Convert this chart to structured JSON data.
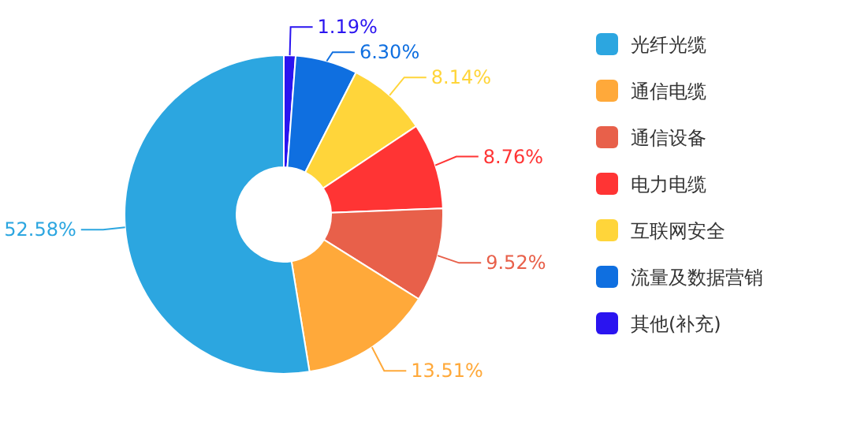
{
  "chart_data": {
    "type": "donut",
    "categories": [
      "光纤光缆",
      "通信电缆",
      "通信设备",
      "电力电缆",
      "互联网安全",
      "流量及数据营销",
      "其他(补充)"
    ],
    "values": [
      52.58,
      13.51,
      9.52,
      8.76,
      8.14,
      6.3,
      1.19
    ],
    "value_labels": [
      "52.58%",
      "13.51%",
      "9.52%",
      "8.76%",
      "8.14%",
      "6.30%",
      "1.19%"
    ],
    "colors": [
      "#2ca6e0",
      "#ffa93a",
      "#e8604a",
      "#ff3434",
      "#ffd53a",
      "#0f6fe0",
      "#2a14f0"
    ],
    "legend": "right"
  }
}
